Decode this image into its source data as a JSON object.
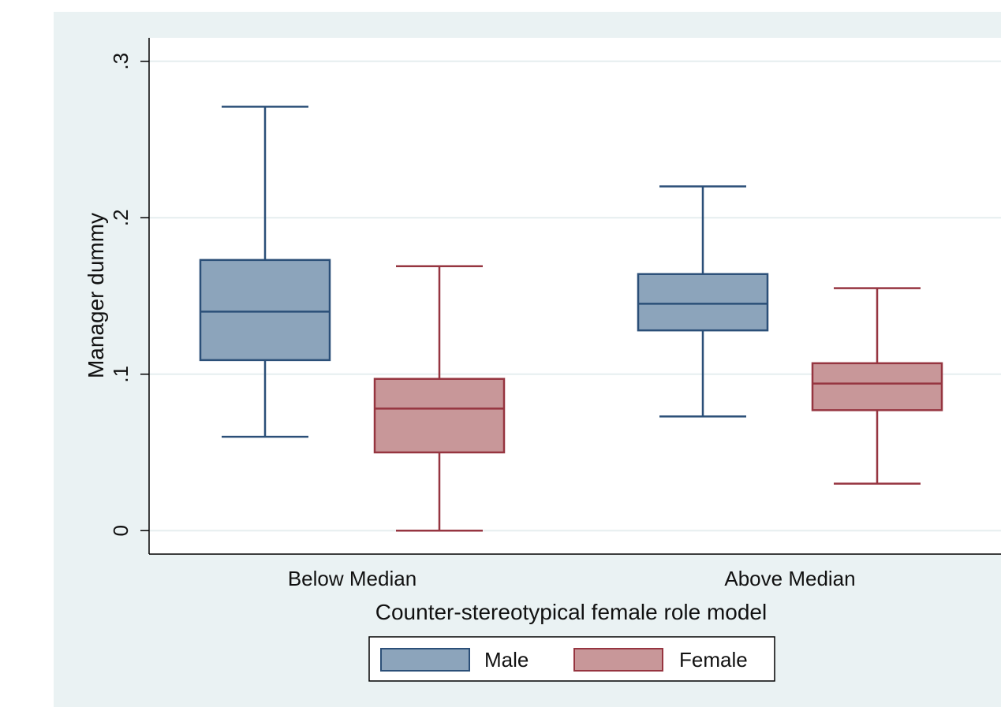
{
  "chart_data": {
    "type": "boxplot",
    "xlabel": "Counter-stereotypical female role model",
    "ylabel": "Manager dummy",
    "ylim": [
      -0.015,
      0.315
    ],
    "yticks": [
      {
        "value": 0,
        "label": "0"
      },
      {
        "value": 0.1,
        "label": ".1"
      },
      {
        "value": 0.2,
        "label": ".2"
      },
      {
        "value": 0.3,
        "label": ".3"
      }
    ],
    "grid": true,
    "legend_position": "bottom",
    "categories": [
      "Below Median",
      "Above Median"
    ],
    "series": [
      {
        "name": "Male",
        "fill": "#8ca4bb",
        "stroke": "#2b4f78",
        "boxes": [
          {
            "whisker_low": 0.06,
            "q1": 0.109,
            "median": 0.14,
            "q3": 0.173,
            "whisker_high": 0.271
          },
          {
            "whisker_low": 0.073,
            "q1": 0.128,
            "median": 0.145,
            "q3": 0.164,
            "whisker_high": 0.22
          }
        ]
      },
      {
        "name": "Female",
        "fill": "#c89799",
        "stroke": "#963540",
        "boxes": [
          {
            "whisker_low": 0.0,
            "q1": 0.05,
            "median": 0.078,
            "q3": 0.097,
            "whisker_high": 0.169
          },
          {
            "whisker_low": 0.03,
            "q1": 0.077,
            "median": 0.094,
            "q3": 0.107,
            "whisker_high": 0.155
          }
        ]
      }
    ]
  }
}
